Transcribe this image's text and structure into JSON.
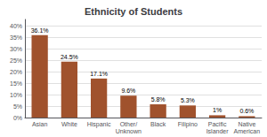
{
  "chart_data": {
    "type": "bar",
    "title": "Ethnicity of Students",
    "categories": [
      "Asian",
      "White",
      "Hispanic",
      "Other/\nUnknown",
      "Black",
      "Filipino",
      "Pacific\nIslander",
      "Native\nAmerican"
    ],
    "values": [
      36.1,
      24.5,
      17.1,
      9.6,
      5.8,
      5.3,
      1.0,
      0.6
    ],
    "value_labels": [
      "36.1%",
      "24.5%",
      "17.1%",
      "9.6%",
      "5.8%",
      "5.3%",
      "1%",
      "0.6%"
    ],
    "data_labels": true,
    "color": "#A0522D",
    "ylim": [
      0,
      43
    ],
    "yticks": [
      {
        "value": 0,
        "label": "0%"
      },
      {
        "value": 5,
        "label": "5%"
      },
      {
        "value": 10,
        "label": "10%"
      },
      {
        "value": 15,
        "label": "15%"
      },
      {
        "value": 20,
        "label": "20%"
      },
      {
        "value": 25,
        "label": "25%"
      },
      {
        "value": 30,
        "label": "30%"
      },
      {
        "value": 35,
        "label": "35%"
      },
      {
        "value": 40,
        "label": "40%"
      }
    ],
    "grid": true
  }
}
